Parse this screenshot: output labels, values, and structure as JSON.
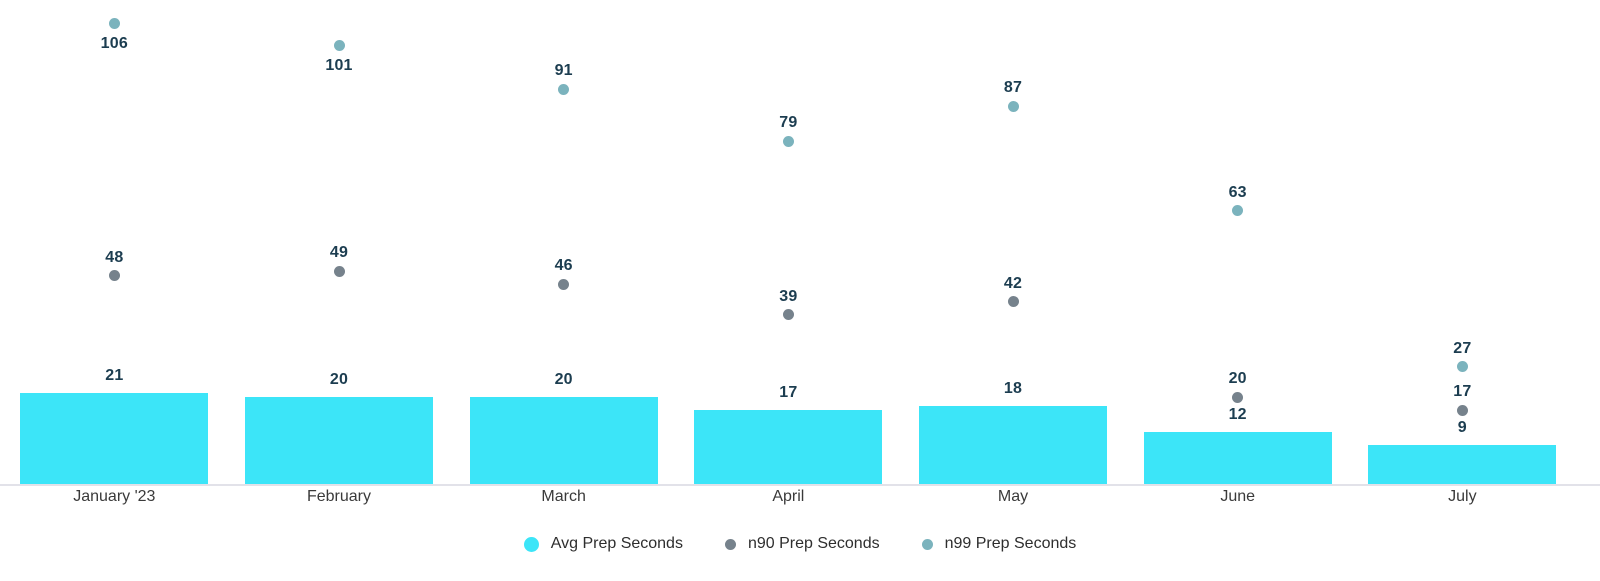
{
  "chart_data": {
    "type": "combo",
    "subtype": "bar-with-scatter-points",
    "categories": [
      "January '23",
      "February",
      "March",
      "April",
      "May",
      "June",
      "July"
    ],
    "series": [
      {
        "name": "Avg Prep Seconds",
        "kind": "bar",
        "color": "#3ce5f8",
        "values": [
          21,
          20,
          20,
          17,
          18,
          12,
          9
        ]
      },
      {
        "name": "n90 Prep Seconds",
        "kind": "scatter",
        "color": "#76828c",
        "values": [
          48,
          49,
          46,
          39,
          42,
          20,
          17
        ]
      },
      {
        "name": "n99 Prep Seconds",
        "kind": "scatter",
        "color": "#7bb3bd",
        "values": [
          106,
          101,
          91,
          79,
          87,
          63,
          27
        ]
      }
    ],
    "title": "",
    "xlabel": "",
    "ylabel": "",
    "ylim": [
      0,
      112
    ],
    "grid": false,
    "y_axis_visible": false,
    "value_labels": true,
    "legend_position": "bottom",
    "colors": {
      "value_label": "#1c3d50",
      "axis_line": "#e2e2e9",
      "category_label": "#3a3a3a",
      "legend_label": "#2e2e2e",
      "background": "#ffffff"
    }
  },
  "legend": {
    "items": [
      {
        "label": "Avg Prep Seconds",
        "marker": "cyan-circle-icon"
      },
      {
        "label": "n90 Prep Seconds",
        "marker": "gray-circle-icon"
      },
      {
        "label": "n99 Prep Seconds",
        "marker": "teal-circle-icon"
      }
    ]
  }
}
